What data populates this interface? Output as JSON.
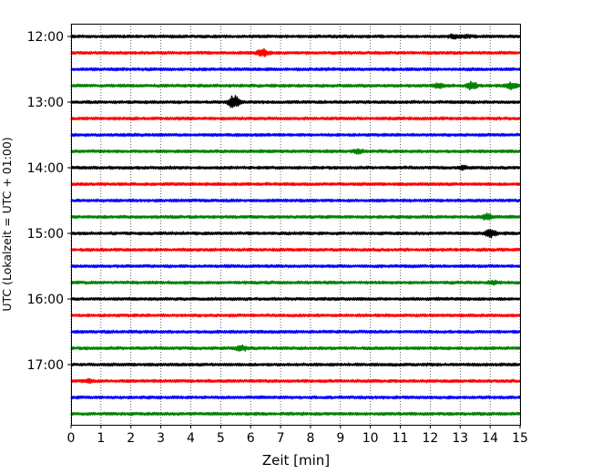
{
  "chart_data": {
    "type": "line",
    "title": "",
    "xlabel": "Zeit  [min]",
    "ylabel": "UTC (Lokalzeit = UTC + 01:00)",
    "xlim": [
      0,
      15
    ],
    "x_ticks": [
      "0",
      "1",
      "2",
      "3",
      "4",
      "5",
      "6",
      "7",
      "8",
      "9",
      "10",
      "11",
      "12",
      "13",
      "14",
      "15"
    ],
    "y_tick_labels": [
      "12:00",
      "13:00",
      "14:00",
      "15:00",
      "16:00",
      "17:00"
    ],
    "row_start": "12:00",
    "row_interval_min": 15,
    "row_colors": [
      "#000000",
      "#ff0000",
      "#0000ff",
      "#008000"
    ],
    "grid_x": true,
    "legend": "none",
    "rows": [
      {
        "start": "12:00",
        "events": [
          {
            "t": 12.8,
            "amp": 1.3
          },
          {
            "t": 13.2,
            "amp": 1.2
          }
        ]
      },
      {
        "start": "12:15",
        "events": [
          {
            "t": 6.4,
            "amp": 3.0
          }
        ]
      },
      {
        "start": "12:30",
        "events": []
      },
      {
        "start": "12:45",
        "events": [
          {
            "t": 12.3,
            "amp": 2.0
          },
          {
            "t": 13.4,
            "amp": 3.0
          },
          {
            "t": 14.7,
            "amp": 2.5
          }
        ]
      },
      {
        "start": "13:00",
        "events": [
          {
            "t": 5.45,
            "amp": 6.0
          }
        ]
      },
      {
        "start": "13:15",
        "events": []
      },
      {
        "start": "13:30",
        "events": []
      },
      {
        "start": "13:45",
        "events": [
          {
            "t": 9.6,
            "amp": 1.2
          }
        ]
      },
      {
        "start": "14:00",
        "events": [
          {
            "t": 13.1,
            "amp": 1.2
          }
        ]
      },
      {
        "start": "14:15",
        "events": []
      },
      {
        "start": "14:30",
        "events": []
      },
      {
        "start": "14:45",
        "events": [
          {
            "t": 13.9,
            "amp": 2.5
          }
        ]
      },
      {
        "start": "15:00",
        "events": [
          {
            "t": 14.0,
            "amp": 3.5
          }
        ]
      },
      {
        "start": "15:15",
        "events": []
      },
      {
        "start": "15:30",
        "events": []
      },
      {
        "start": "15:45",
        "events": [
          {
            "t": 14.1,
            "amp": 1.3
          }
        ]
      },
      {
        "start": "16:00",
        "events": []
      },
      {
        "start": "16:15",
        "events": []
      },
      {
        "start": "16:30",
        "events": []
      },
      {
        "start": "16:45",
        "events": [
          {
            "t": 5.7,
            "amp": 2.0
          }
        ]
      },
      {
        "start": "17:00",
        "events": []
      },
      {
        "start": "17:15",
        "events": [
          {
            "t": 0.6,
            "amp": 1.3
          }
        ]
      },
      {
        "start": "17:30",
        "events": []
      },
      {
        "start": "17:45",
        "events": []
      }
    ]
  }
}
